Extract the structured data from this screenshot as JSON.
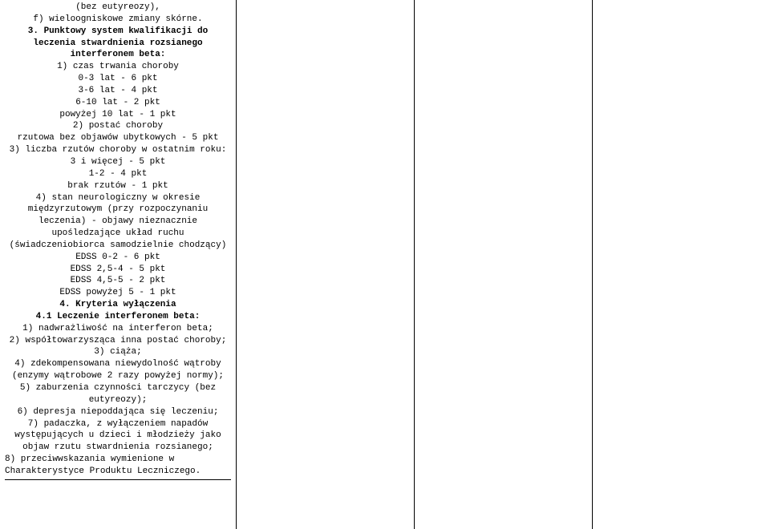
{
  "col1": {
    "p1": "(bez eutyreozy),",
    "p2": "f) wieloogniskowe zmiany skórne.",
    "p3": "3. Punktowy system kwalifikacji do leczenia stwardnienia rozsianego interferonem beta:",
    "p4": "1) czas trwania choroby",
    "p5": "0-3 lat - 6 pkt",
    "p6": "3-6 lat - 4 pkt",
    "p7": "6-10 lat - 2 pkt",
    "p8": "powyżej 10 lat - 1 pkt",
    "p9": "2) postać choroby",
    "p10": "rzutowa bez objawów ubytkowych - 5 pkt",
    "p11": "3) liczba rzutów choroby w ostatnim roku:",
    "p12": "3 i więcej - 5 pkt",
    "p13": "1-2 - 4 pkt",
    "p14": "brak rzutów - 1 pkt",
    "p15": "4) stan neurologiczny w okresie międzyrzutowym (przy rozpoczynaniu leczenia) - objawy nieznacznie upośledzające układ ruchu (świadczeniobiorca samodzielnie chodzący)",
    "p16": "EDSS 0-2 - 6 pkt",
    "p17": "EDSS 2,5-4 - 5 pkt",
    "p18": "EDSS 4,5-5 - 2 pkt",
    "p19": "EDSS powyżej 5 - 1 pkt",
    "p20": "4. Kryteria wyłączenia",
    "p21": "4.1 Leczenie interferonem beta:",
    "p22": "1) nadwrażliwość na interferon beta;",
    "p23": "2) współtowarzysząca inna postać choroby;",
    "p24": "3) ciąża;",
    "p25": "4) zdekompensowana niewydolność wątroby (enzymy wątrobowe 2 razy powyżej normy);",
    "p26": "5) zaburzenia czynności tarczycy (bez eutyreozy);",
    "p27": "6) depresja niepoddająca się leczeniu;",
    "p28": "7) padaczka, z wyłączeniem napadów występujących u dzieci i młodzieży jako objaw rzutu stwardnienia rozsianego;",
    "p29": "8) przeciwwskazania wymienione w Charakterystyce Produktu Leczniczego."
  }
}
